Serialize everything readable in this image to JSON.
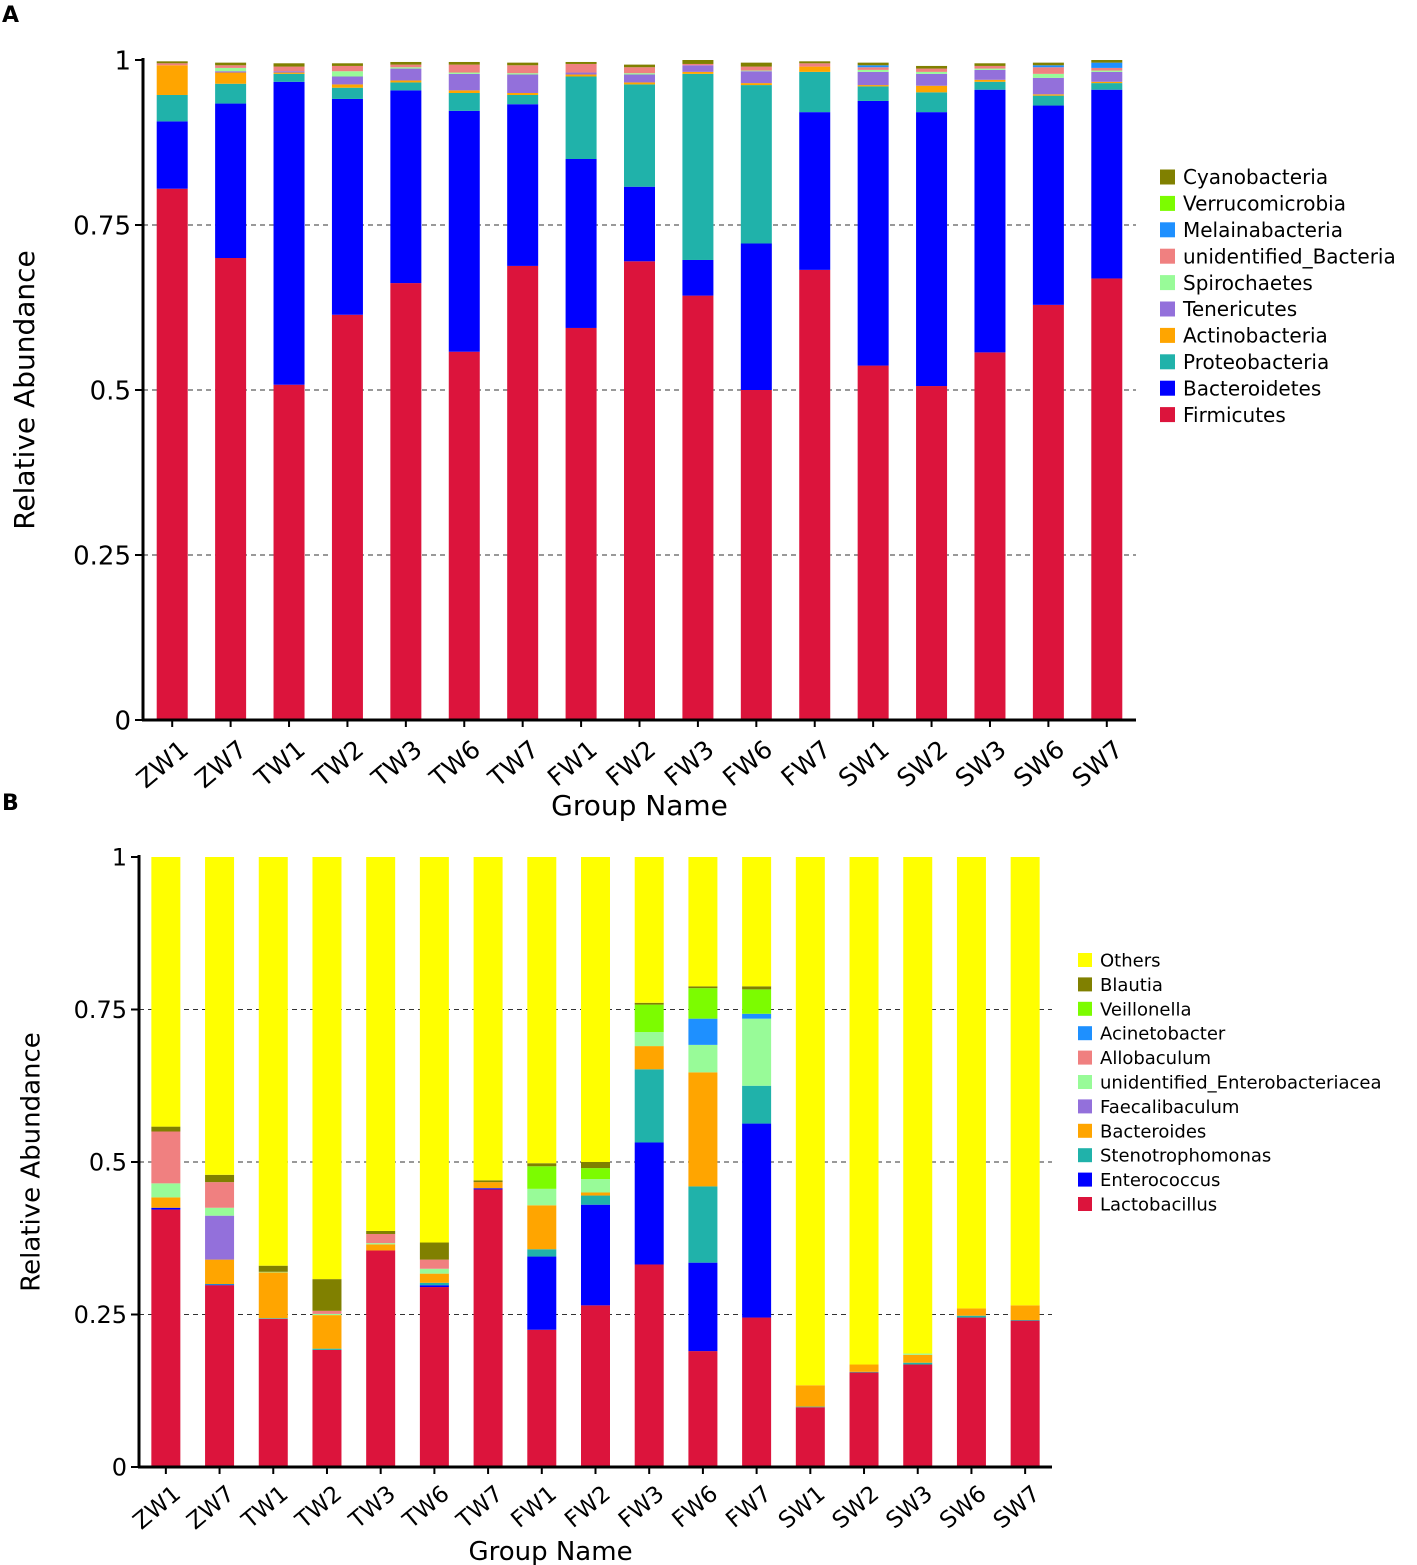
{
  "figure": {
    "panel_a_label": "A",
    "panel_b_label": "B"
  },
  "chart_data": [
    {
      "type": "bar",
      "stacked": true,
      "panel": "A",
      "xlabel": "Group Name",
      "ylabel": "Relative Abundance",
      "ylim": [
        0,
        1
      ],
      "yticks": [
        {
          "value": 0,
          "label": "0"
        },
        {
          "value": 0.25,
          "label": "0.25"
        },
        {
          "value": 0.5,
          "label": "0.5"
        },
        {
          "value": 0.75,
          "label": "0.75"
        },
        {
          "value": 1,
          "label": "1"
        }
      ],
      "gridlines": [
        0.25,
        0.5,
        0.75
      ],
      "legend_position": "right",
      "categories": [
        "ZW1",
        "ZW7",
        "TW1",
        "TW2",
        "TW3",
        "TW6",
        "TW7",
        "FW1",
        "FW2",
        "FW3",
        "FW6",
        "FW7",
        "SW1",
        "SW2",
        "SW3",
        "SW6",
        "SW7"
      ],
      "series": [
        {
          "name": "Firmicutes",
          "color": "#DC143C",
          "values": [
            0.805,
            0.7,
            0.508,
            0.614,
            0.662,
            0.558,
            0.688,
            0.594,
            0.695,
            0.643,
            0.5,
            0.682,
            0.537,
            0.506,
            0.557,
            0.629,
            0.669
          ]
        },
        {
          "name": "Bacteroidetes",
          "color": "#0000FF",
          "values": [
            0.102,
            0.234,
            0.459,
            0.327,
            0.292,
            0.365,
            0.245,
            0.256,
            0.113,
            0.054,
            0.222,
            0.239,
            0.401,
            0.415,
            0.398,
            0.302,
            0.286
          ]
        },
        {
          "name": "Proteobacteria",
          "color": "#20B2AA",
          "values": [
            0.04,
            0.03,
            0.012,
            0.017,
            0.012,
            0.027,
            0.014,
            0.125,
            0.155,
            0.282,
            0.24,
            0.061,
            0.022,
            0.03,
            0.012,
            0.015,
            0.01
          ]
        },
        {
          "name": "Actinobacteria",
          "color": "#FFA500",
          "values": [
            0.045,
            0.017,
            0.002,
            0.005,
            0.003,
            0.004,
            0.003,
            0.003,
            0.003,
            0.003,
            0.003,
            0.008,
            0.002,
            0.01,
            0.003,
            0.002,
            0.002
          ]
        },
        {
          "name": "Tenericutes",
          "color": "#9370DB",
          "values": [
            0.0,
            0.002,
            0.002,
            0.012,
            0.018,
            0.025,
            0.028,
            0.003,
            0.012,
            0.01,
            0.018,
            0.0,
            0.02,
            0.018,
            0.015,
            0.025,
            0.015
          ]
        },
        {
          "name": "Spirochaetes",
          "color": "#98FB98",
          "values": [
            0.0,
            0.005,
            0.0,
            0.008,
            0.002,
            0.002,
            0.002,
            0.0,
            0.002,
            0.0,
            0.001,
            0.0,
            0.003,
            0.003,
            0.002,
            0.006,
            0.002
          ]
        },
        {
          "name": "unidentified_Bacteria",
          "color": "#F08080",
          "values": [
            0.003,
            0.004,
            0.007,
            0.008,
            0.004,
            0.012,
            0.012,
            0.013,
            0.009,
            0.002,
            0.006,
            0.005,
            0.004,
            0.005,
            0.004,
            0.01,
            0.004
          ]
        },
        {
          "name": "Melainabacteria",
          "color": "#1E90FF",
          "values": [
            0.0,
            0.0,
            0.0,
            0.0,
            0.0,
            0.0,
            0.0,
            0.0,
            0.0,
            0.0,
            0.0,
            0.0,
            0.003,
            0.0,
            0.0,
            0.003,
            0.008
          ]
        },
        {
          "name": "Verrucomicrobia",
          "color": "#7CFC00",
          "values": [
            0.0,
            0.0,
            0.0,
            0.0,
            0.0,
            0.0,
            0.0,
            0.0,
            0.0,
            0.0,
            0.0,
            0.0,
            0.0,
            0.0,
            0.0,
            0.0,
            0.0
          ]
        },
        {
          "name": "Cyanobacteria",
          "color": "#808000",
          "values": [
            0.003,
            0.004,
            0.005,
            0.004,
            0.004,
            0.004,
            0.004,
            0.003,
            0.004,
            0.006,
            0.006,
            0.003,
            0.004,
            0.004,
            0.004,
            0.004,
            0.004
          ]
        }
      ]
    },
    {
      "type": "bar",
      "stacked": true,
      "panel": "B",
      "xlabel": "Group Name",
      "ylabel": "Relative Abundance",
      "ylim": [
        0,
        1
      ],
      "yticks": [
        {
          "value": 0,
          "label": "0"
        },
        {
          "value": 0.25,
          "label": "0.25"
        },
        {
          "value": 0.5,
          "label": "0.5"
        },
        {
          "value": 0.75,
          "label": "0.75"
        },
        {
          "value": 1,
          "label": "1"
        }
      ],
      "gridlines": [
        0.25,
        0.5,
        0.75
      ],
      "legend_position": "right",
      "categories": [
        "ZW1",
        "ZW7",
        "TW1",
        "TW2",
        "TW3",
        "TW6",
        "TW7",
        "FW1",
        "FW2",
        "FW3",
        "FW6",
        "FW7",
        "SW1",
        "SW2",
        "SW3",
        "SW6",
        "SW7"
      ],
      "series": [
        {
          "name": "Lactobacillus",
          "color": "#DC143C",
          "values": [
            0.422,
            0.298,
            0.243,
            0.192,
            0.355,
            0.295,
            0.455,
            0.225,
            0.265,
            0.332,
            0.19,
            0.245,
            0.098,
            0.155,
            0.168,
            0.245,
            0.24
          ]
        },
        {
          "name": "Enterococcus",
          "color": "#0000FF",
          "values": [
            0.003,
            0.001,
            0.0,
            0.0,
            0.0,
            0.003,
            0.002,
            0.12,
            0.165,
            0.2,
            0.145,
            0.318,
            0.0,
            0.0,
            0.0,
            0.0,
            0.0
          ]
        },
        {
          "name": "Stenotrophomonas",
          "color": "#20B2AA",
          "values": [
            0.0,
            0.001,
            0.001,
            0.002,
            0.0,
            0.004,
            0.0,
            0.012,
            0.015,
            0.12,
            0.125,
            0.062,
            0.001,
            0.001,
            0.003,
            0.003,
            0.001
          ]
        },
        {
          "name": "Bacteroides",
          "color": "#FFA500",
          "values": [
            0.017,
            0.04,
            0.075,
            0.055,
            0.01,
            0.015,
            0.01,
            0.072,
            0.005,
            0.038,
            0.187,
            0.0,
            0.035,
            0.012,
            0.013,
            0.012,
            0.024
          ]
        },
        {
          "name": "Faecalibaculum",
          "color": "#9370DB",
          "values": [
            0.0,
            0.072,
            0.0,
            0.0,
            0.0,
            0.0,
            0.0,
            0.0,
            0.0,
            0.0,
            0.0,
            0.0,
            0.0,
            0.0,
            0.0,
            0.0,
            0.0
          ]
        },
        {
          "name": "unidentified_Enterobacteriaceae",
          "label": "unidentified_Enterobacteriacea",
          "color": "#98FB98",
          "values": [
            0.023,
            0.013,
            0.001,
            0.002,
            0.002,
            0.008,
            0.0,
            0.027,
            0.022,
            0.023,
            0.045,
            0.11,
            0.0,
            0.0,
            0.002,
            0.0,
            0.0
          ]
        },
        {
          "name": "Allobaculum",
          "color": "#F08080",
          "values": [
            0.085,
            0.042,
            0.0,
            0.005,
            0.015,
            0.015,
            0.0,
            0.0,
            0.0,
            0.0,
            0.0,
            0.0,
            0.0,
            0.0,
            0.0,
            0.0,
            0.0
          ]
        },
        {
          "name": "Acinetobacter",
          "color": "#1E90FF",
          "values": [
            0.0,
            0.0,
            0.0,
            0.0,
            0.0,
            0.0,
            0.0,
            0.0,
            0.0,
            0.0,
            0.043,
            0.008,
            0.0,
            0.0,
            0.0,
            0.0,
            0.0
          ]
        },
        {
          "name": "Veillonella",
          "color": "#7CFC00",
          "values": [
            0.0,
            0.0,
            0.0,
            0.0,
            0.0,
            0.0,
            0.0,
            0.037,
            0.018,
            0.045,
            0.05,
            0.04,
            0.0,
            0.0,
            0.0,
            0.0,
            0.0
          ]
        },
        {
          "name": "Blautia",
          "color": "#808000",
          "values": [
            0.008,
            0.012,
            0.01,
            0.052,
            0.005,
            0.028,
            0.003,
            0.005,
            0.01,
            0.003,
            0.003,
            0.005,
            0.0,
            0.0,
            0.0,
            0.0,
            0.0
          ]
        },
        {
          "name": "Others",
          "color": "#FFFF00",
          "values": [
            0.442,
            0.521,
            0.67,
            0.692,
            0.613,
            0.632,
            0.53,
            0.502,
            0.5,
            0.239,
            0.212,
            0.212,
            0.866,
            0.832,
            0.814,
            0.74,
            0.735
          ]
        }
      ]
    }
  ]
}
